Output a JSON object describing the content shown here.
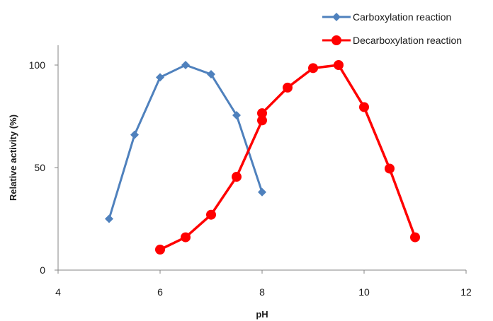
{
  "chart_data": {
    "type": "line",
    "title": "",
    "xlabel": "pH",
    "ylabel": "Relative activity  (%)",
    "xlim": [
      4,
      12
    ],
    "ylim": [
      0,
      100
    ],
    "x_ticks": [
      4,
      6,
      8,
      10,
      12
    ],
    "y_ticks": [
      0,
      50,
      100
    ],
    "grid": false,
    "legend_position": "top-right",
    "series": [
      {
        "name": "Carboxylation reaction",
        "color": "#4f81bd",
        "marker": "diamond",
        "points": [
          {
            "x": 5,
            "y": 25
          },
          {
            "x": 5.5,
            "y": 66
          },
          {
            "x": 6,
            "y": 94
          },
          {
            "x": 6.5,
            "y": 100
          },
          {
            "x": 7,
            "y": 95.5
          },
          {
            "x": 7.5,
            "y": 75.5
          },
          {
            "x": 8,
            "y": 38
          }
        ]
      },
      {
        "name": "Decarboxylation reaction",
        "color": "#ff0000",
        "marker": "circle",
        "points": [
          {
            "x": 6,
            "y": 10
          },
          {
            "x": 6.5,
            "y": 16
          },
          {
            "x": 7,
            "y": 27
          },
          {
            "x": 7.5,
            "y": 45.5
          },
          {
            "x": 8,
            "y": 73
          },
          {
            "x": 8,
            "y": 76.5
          },
          {
            "x": 8.5,
            "y": 89
          },
          {
            "x": 9,
            "y": 98.5
          },
          {
            "x": 9.5,
            "y": 100
          },
          {
            "x": 10,
            "y": 79.5
          },
          {
            "x": 10.5,
            "y": 49.5
          },
          {
            "x": 11,
            "y": 16
          }
        ]
      }
    ]
  }
}
